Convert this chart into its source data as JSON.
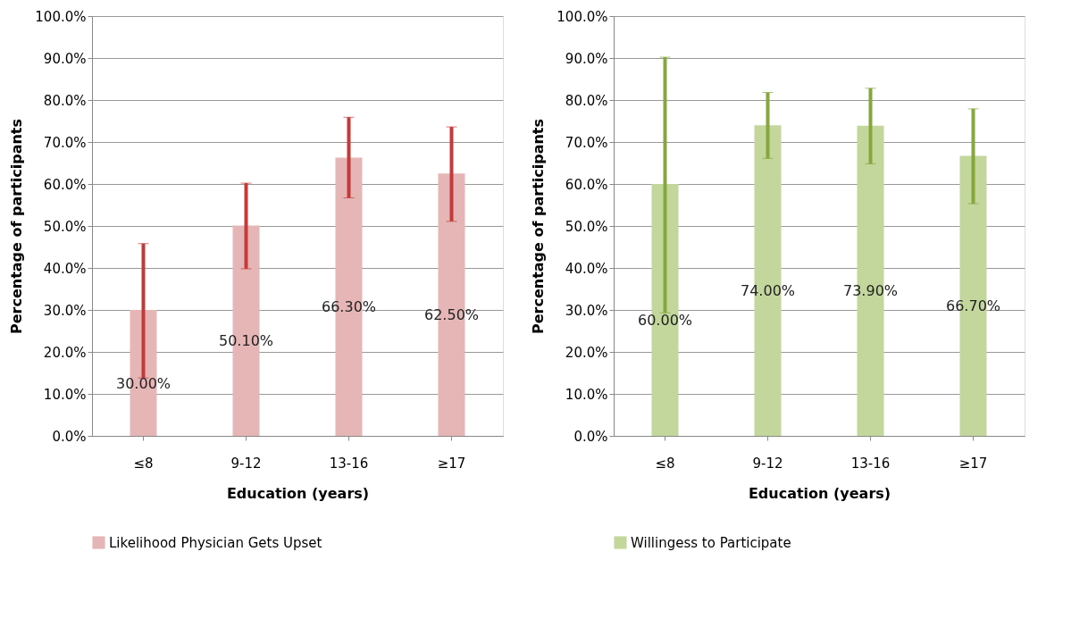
{
  "chart_data": [
    {
      "type": "bar",
      "xlabel": "Education (years)",
      "ylabel": "Percentage of participants",
      "categories": [
        "≤8",
        "9-12",
        "13-16",
        "≥17"
      ],
      "series": [
        {
          "name": "Likelihood Physician Gets Upset",
          "color": "#e6b5b5",
          "values": [
            30.0,
            50.1,
            66.3,
            62.5
          ],
          "errors": [
            [
              13.8,
              45.8
            ],
            [
              39.8,
              60.2
            ],
            [
              56.7,
              75.9
            ],
            [
              51.1,
              73.6
            ]
          ],
          "value_labels": [
            "30.00%",
            "50.10%",
            "66.30%",
            "62.50%"
          ]
        }
      ],
      "ylim": [
        0,
        100
      ],
      "yticks": [
        {
          "value": 0,
          "label": "0.0%"
        },
        {
          "value": 10,
          "label": "10.0%"
        },
        {
          "value": 20,
          "label": "20.0%"
        },
        {
          "value": 30,
          "label": "30.0%"
        },
        {
          "value": 40,
          "label": "40.0%"
        },
        {
          "value": 50,
          "label": "50.0%"
        },
        {
          "value": 60,
          "label": "60.0%"
        },
        {
          "value": 70,
          "label": "70.0%"
        },
        {
          "value": 80,
          "label": "80.0%"
        },
        {
          "value": 90,
          "label": "90.0%"
        },
        {
          "value": 100,
          "label": "100.0%"
        }
      ],
      "grid": "y",
      "legend": "bottom"
    },
    {
      "type": "bar",
      "xlabel": "Education (years)",
      "ylabel": "Percentage of participants",
      "categories": [
        "≤8",
        "9-12",
        "13-16",
        "≥17"
      ],
      "series": [
        {
          "name": "Willingess to Participate",
          "color": "#c3d69b",
          "values": [
            60.0,
            74.0,
            73.9,
            66.7
          ],
          "errors": [
            [
              29.3,
              90.2
            ],
            [
              66.1,
              81.8
            ],
            [
              64.8,
              82.8
            ],
            [
              55.3,
              77.9
            ]
          ],
          "value_labels": [
            "60.00%",
            "74.00%",
            "73.90%",
            "66.70%"
          ]
        }
      ],
      "ylim": [
        0,
        100
      ],
      "yticks": [
        {
          "value": 0,
          "label": "0.0%"
        },
        {
          "value": 10,
          "label": "10.0%"
        },
        {
          "value": 20,
          "label": "20.0%"
        },
        {
          "value": 30,
          "label": "30.0%"
        },
        {
          "value": 40,
          "label": "40.0%"
        },
        {
          "value": 50,
          "label": "50.0%"
        },
        {
          "value": 60,
          "label": "60.0%"
        },
        {
          "value": 70,
          "label": "70.0%"
        },
        {
          "value": 80,
          "label": "80.0%"
        },
        {
          "value": 90,
          "label": "90.0%"
        },
        {
          "value": 100,
          "label": "100.0%"
        }
      ],
      "grid": "y",
      "legend": "bottom"
    }
  ]
}
